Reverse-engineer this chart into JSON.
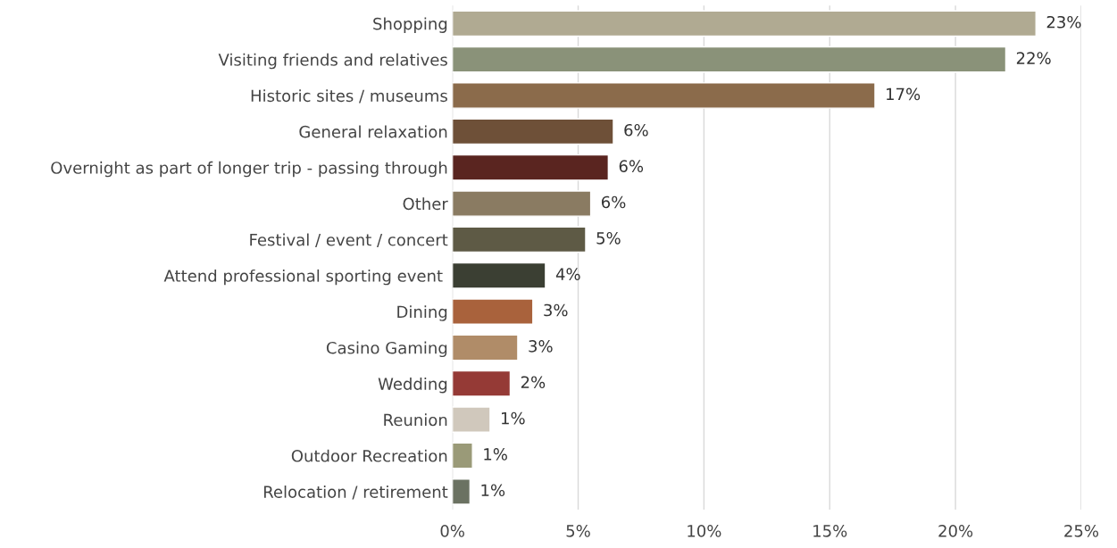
{
  "chart_data": {
    "type": "bar",
    "orientation": "horizontal",
    "categories": [
      "Shopping",
      "Visiting friends and relatives",
      "Historic sites / museums",
      "General relaxation",
      "Overnight as part of longer trip - passing through",
      "Other",
      "Festival / event / concert",
      "Attend professional sporting event ",
      "Dining",
      "Casino Gaming",
      "Wedding",
      "Reunion",
      "Outdoor Recreation",
      "Relocation / retirement"
    ],
    "values": [
      23.2,
      22.0,
      16.8,
      6.4,
      6.2,
      5.5,
      5.3,
      3.7,
      3.2,
      2.6,
      2.3,
      1.5,
      0.8,
      0.7
    ],
    "value_labels": [
      "23%",
      "22%",
      "17%",
      "6%",
      "6%",
      "6%",
      "5%",
      "4%",
      "3%",
      "3%",
      "2%",
      "1%",
      "1%",
      "1%"
    ],
    "colors": [
      "#b0aa92",
      "#8a9279",
      "#8b6b4b",
      "#6e5038",
      "#5a2520",
      "#8a7b62",
      "#5e5a45",
      "#3b3f33",
      "#a9623c",
      "#b08c68",
      "#953a36",
      "#d0c8bc",
      "#9a9a78",
      "#6b7262"
    ],
    "xlim": [
      0,
      25
    ],
    "xticks": [
      {
        "value": 0,
        "label": "0%"
      },
      {
        "value": 5,
        "label": "5%"
      },
      {
        "value": 10,
        "label": "10%"
      },
      {
        "value": 15,
        "label": "15%"
      },
      {
        "value": 20,
        "label": "20%"
      },
      {
        "value": 25,
        "label": "25%"
      }
    ],
    "grid": "x",
    "legend": false
  }
}
